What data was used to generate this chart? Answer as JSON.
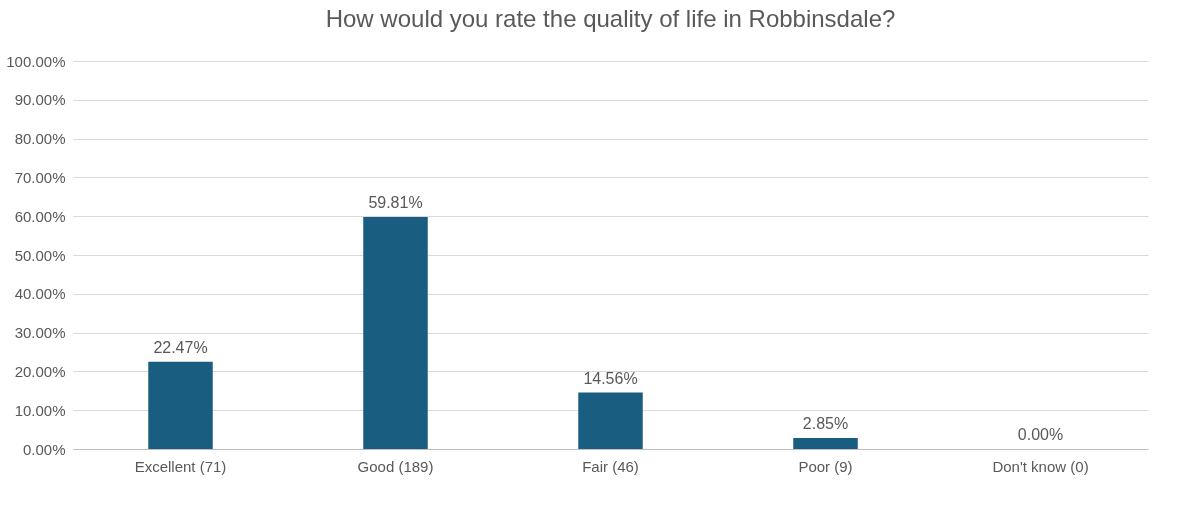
{
  "chart_data": {
    "type": "bar",
    "title": "How would you rate the quality of life in Robbinsdale?",
    "categories": [
      "Excellent (71)",
      "Good (189)",
      "Fair (46)",
      "Poor (9)",
      "Don't know (0)"
    ],
    "values": [
      22.47,
      59.81,
      14.56,
      2.85,
      0.0
    ],
    "value_labels": [
      "22.47%",
      "59.81%",
      "14.56%",
      "2.85%",
      "0.00%"
    ],
    "color": "#195e80",
    "ylim": [
      0,
      100
    ],
    "yticks": [
      {
        "value": 0,
        "label": "0.00%"
      },
      {
        "value": 10,
        "label": "10.00%"
      },
      {
        "value": 20,
        "label": "20.00%"
      },
      {
        "value": 30,
        "label": "30.00%"
      },
      {
        "value": 40,
        "label": "40.00%"
      },
      {
        "value": 50,
        "label": "50.00%"
      },
      {
        "value": 60,
        "label": "60.00%"
      },
      {
        "value": 70,
        "label": "70.00%"
      },
      {
        "value": 80,
        "label": "80.00%"
      },
      {
        "value": 90,
        "label": "90.00%"
      },
      {
        "value": 100,
        "label": "100.00%"
      }
    ],
    "grid": "y"
  }
}
